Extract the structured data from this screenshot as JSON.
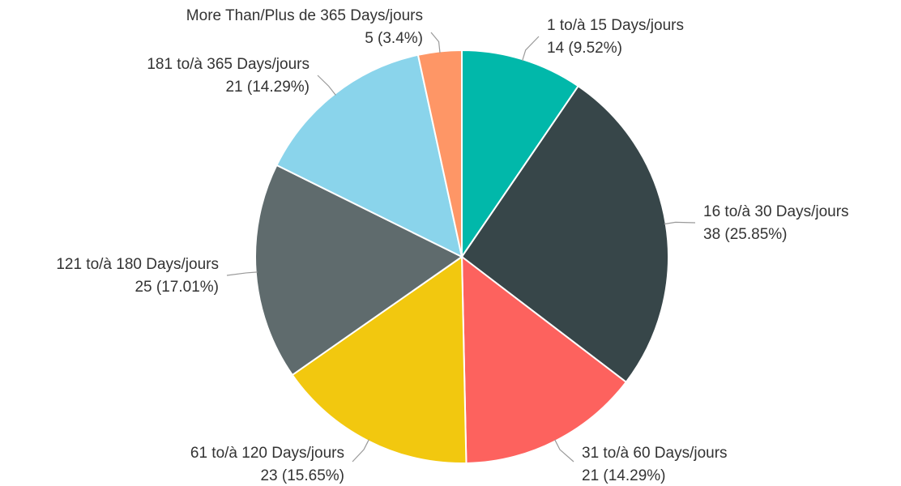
{
  "chart_data": {
    "type": "pie",
    "categories": [
      "1 to/à 15 Days/jours",
      "16 to/à 30 Days/jours",
      "31 to/à 60 Days/jours",
      "61 to/à 120 Days/jours",
      "121 to/à 180 Days/jours",
      "181 to/à 365 Days/jours",
      "More Than/Plus de 365 Days/jours"
    ],
    "values": [
      14,
      38,
      21,
      23,
      25,
      21,
      5
    ],
    "value_labels": [
      "14 (9.52%)",
      "38 (25.85%)",
      "21 (14.29%)",
      "23 (15.65%)",
      "25 (17.01%)",
      "21 (14.29%)",
      "5 (3.4%)"
    ],
    "colors": [
      "#01b8aa",
      "#374649",
      "#fd625e",
      "#f2c80f",
      "#5f6b6d",
      "#8ad4eb",
      "#fe9666"
    ]
  }
}
